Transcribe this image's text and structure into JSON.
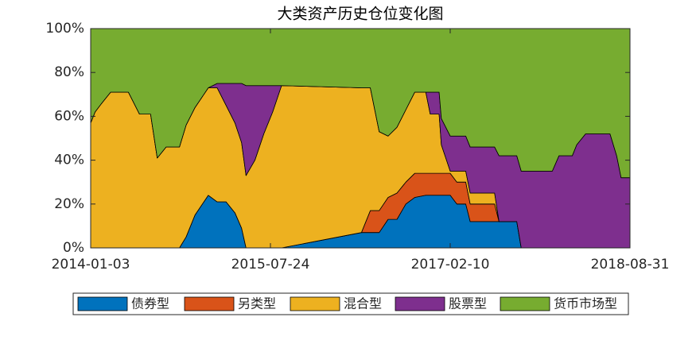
{
  "chart_data": {
    "type": "stacked-area",
    "title": "大类资产历史仓位变化图",
    "x": [
      "2014-01-03",
      "2014-01-17",
      "2014-02-07",
      "2014-03-07",
      "2014-05-02",
      "2014-06-06",
      "2014-07-11",
      "2014-08-01",
      "2014-08-29",
      "2014-10-10",
      "2014-10-31",
      "2014-11-28",
      "2015-01-09",
      "2015-02-06",
      "2015-03-06",
      "2015-04-03",
      "2015-04-24",
      "2015-05-08",
      "2015-06-05",
      "2015-07-03",
      "2015-07-31",
      "2015-08-28",
      "2016-05-06",
      "2016-06-03",
      "2016-07-01",
      "2016-07-29",
      "2016-08-26",
      "2016-09-23",
      "2016-10-21",
      "2016-11-25",
      "2016-12-09",
      "2017-01-06",
      "2017-01-13",
      "2017-02-10",
      "2017-03-03",
      "2017-03-31",
      "2017-04-14",
      "2017-06-30",
      "2017-07-14",
      "2017-09-08",
      "2017-09-22",
      "2017-12-29",
      "2018-01-19",
      "2018-03-02",
      "2018-03-16",
      "2018-04-13",
      "2018-06-29",
      "2018-07-20",
      "2018-08-03",
      "2018-08-31"
    ],
    "series": [
      {
        "name": "债券型",
        "color": "#0072BD",
        "values": [
          0,
          0,
          0,
          0,
          0,
          0,
          0,
          0,
          0,
          0,
          5,
          15,
          24,
          21,
          21,
          16,
          9,
          0,
          0,
          0,
          0,
          0,
          7,
          7,
          7,
          13,
          13,
          20,
          23,
          24,
          24,
          24,
          24,
          24,
          20,
          20,
          12,
          12,
          12,
          12,
          0,
          0,
          0,
          0,
          0,
          0,
          0,
          0,
          0,
          0
        ]
      },
      {
        "name": "另类型",
        "color": "#D95319",
        "values": [
          0,
          0,
          0,
          0,
          0,
          0,
          0,
          0,
          0,
          0,
          0,
          0,
          0,
          0,
          0,
          0,
          0,
          0,
          0,
          0,
          0,
          0,
          0,
          10,
          10,
          10,
          12,
          10,
          11,
          10,
          10,
          10,
          10,
          10,
          10,
          10,
          8,
          8,
          0,
          0,
          0,
          0,
          0,
          0,
          0,
          0,
          0,
          0,
          0,
          0
        ]
      },
      {
        "name": "混合型",
        "color": "#EDB120",
        "values": [
          57,
          62,
          66,
          71,
          71,
          61,
          61,
          41,
          46,
          46,
          51,
          49,
          49,
          52,
          44,
          41,
          39,
          33,
          40,
          52,
          62,
          74,
          66,
          56,
          36,
          28,
          30,
          33,
          37,
          37,
          27,
          27,
          13,
          1,
          5,
          5,
          5,
          5,
          0,
          0,
          0,
          0,
          0,
          0,
          0,
          0,
          0,
          0,
          0,
          0
        ]
      },
      {
        "name": "股票型",
        "color": "#7E2F8E",
        "values": [
          0,
          0,
          0,
          0,
          0,
          0,
          0,
          0,
          0,
          0,
          0,
          0,
          0,
          2,
          10,
          18,
          27,
          41,
          34,
          22,
          12,
          0,
          0,
          0,
          0,
          0,
          0,
          0,
          0,
          0,
          10,
          10,
          12,
          16,
          16,
          16,
          21,
          21,
          30,
          30,
          35,
          35,
          42,
          42,
          47,
          52,
          52,
          42,
          32,
          32
        ]
      },
      {
        "name": "货币市场型",
        "color": "#77AC30",
        "values": [
          43,
          38,
          34,
          29,
          29,
          39,
          39,
          59,
          54,
          54,
          44,
          36,
          27,
          25,
          25,
          25,
          25,
          26,
          26,
          26,
          26,
          26,
          27,
          27,
          47,
          49,
          45,
          37,
          29,
          29,
          29,
          29,
          41,
          49,
          49,
          49,
          54,
          54,
          58,
          58,
          65,
          65,
          58,
          58,
          53,
          48,
          48,
          58,
          68,
          68
        ]
      }
    ],
    "xlim": [
      "2014-01-03",
      "2018-08-31"
    ],
    "xticks": [
      "2014-01-03",
      "2015-07-24",
      "2017-02-10",
      "2018-08-31"
    ],
    "ylim": [
      0,
      100
    ],
    "yticks": [
      {
        "value": 0,
        "label": "0%"
      },
      {
        "value": 20,
        "label": "20%"
      },
      {
        "value": 40,
        "label": "40%"
      },
      {
        "value": 60,
        "label": "60%"
      },
      {
        "value": 80,
        "label": "80%"
      },
      {
        "value": 100,
        "label": "100%"
      }
    ],
    "legend": "bottom"
  }
}
